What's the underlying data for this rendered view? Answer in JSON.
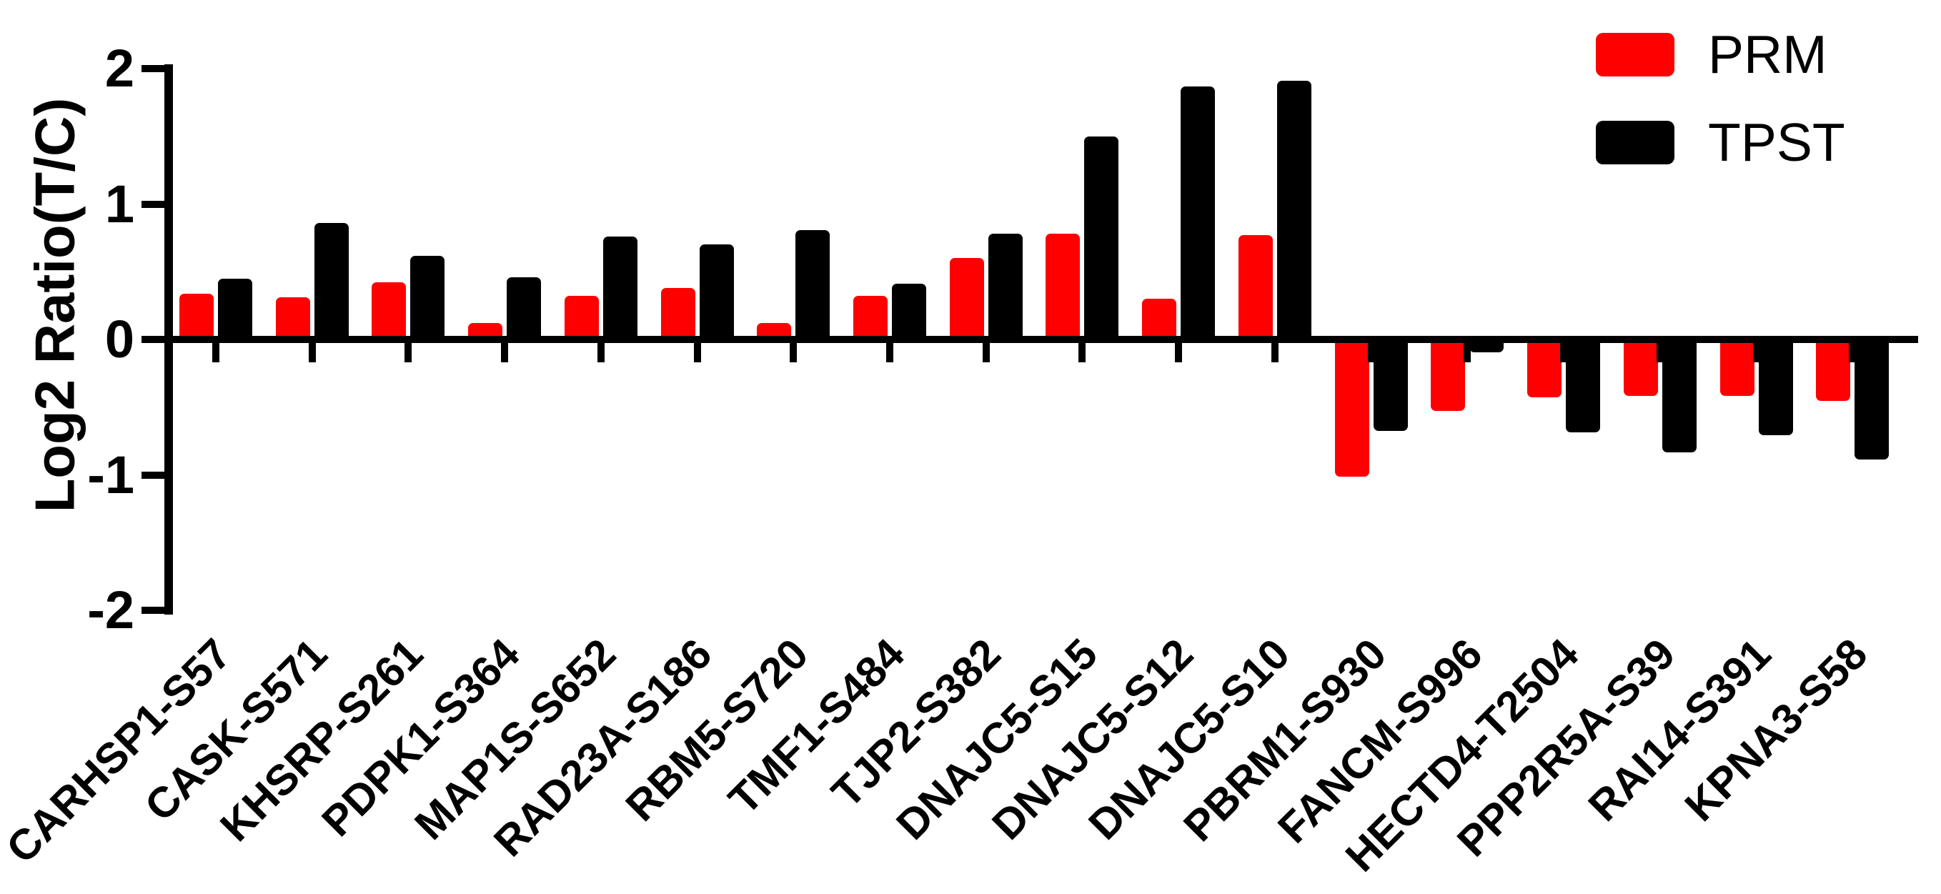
{
  "chart_data": {
    "type": "bar",
    "title": "",
    "xlabel": "",
    "ylabel": "Log2 Ratio(T/C)",
    "ylim": [
      -2,
      2
    ],
    "yticks": [
      "2",
      "1",
      "0",
      "-1",
      "-2"
    ],
    "ytick_values": [
      2,
      1,
      0,
      -1,
      -2
    ],
    "grid": false,
    "legend_position": "top-right",
    "categories": [
      "CARHSP1-S57",
      "CASK-S571",
      "KHSRP-S261",
      "PDPK1-S364",
      "MAP1S-S652",
      "RAD23A-S186",
      "RBM5-S720",
      "TMF1-S484",
      "TJP2-S382",
      "DNAJC5-S15",
      "DNAJC5-S12",
      "DNAJC5-S10",
      "PBRM1-S930",
      "FANCM-S996",
      "HECTD4-T2504",
      "PPP2R5A-S39",
      "RAI14-S391",
      "KPNA3-S58"
    ],
    "series": [
      {
        "name": "PRM",
        "color": "#FF0000",
        "values": [
          0.34,
          0.31,
          0.42,
          0.12,
          0.32,
          0.38,
          0.12,
          0.32,
          0.6,
          0.78,
          0.3,
          0.77,
          -1.01,
          -0.52,
          -0.42,
          -0.41,
          -0.41,
          -0.45
        ]
      },
      {
        "name": "TPST",
        "color": "#000000",
        "values": [
          0.45,
          0.86,
          0.62,
          0.46,
          0.76,
          0.7,
          0.81,
          0.41,
          0.78,
          1.5,
          1.87,
          1.91,
          -0.67,
          -0.09,
          -0.68,
          -0.83,
          -0.7,
          -0.88
        ]
      }
    ]
  }
}
